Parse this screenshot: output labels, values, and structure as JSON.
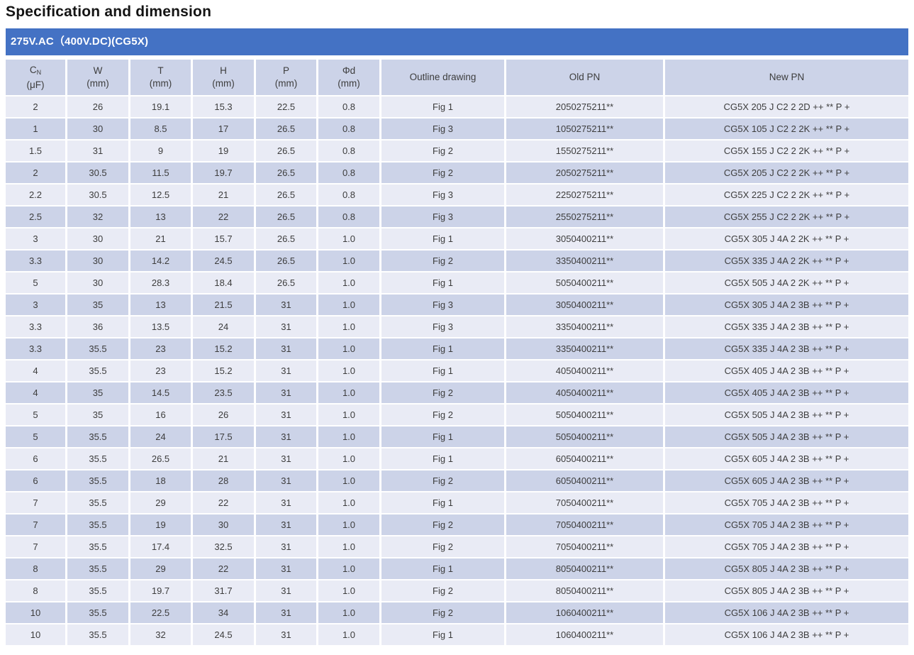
{
  "page_title": "Specification and dimension",
  "band": {
    "title": "275V.AC（400V.DC)(CG5X)"
  },
  "colors": {
    "band_bg": "#4472c4",
    "header_row_bg": "#ccd3e8",
    "row_light_bg": "#e9ebf5",
    "row_dark_bg": "#ccd3e8",
    "cell_text": "#3d3d3d"
  },
  "table": {
    "columns": [
      {
        "top": "C",
        "sub": "N",
        "bottom": "(μF)"
      },
      {
        "top": "W",
        "bottom": "(mm)"
      },
      {
        "top": "T",
        "bottom": "(mm)"
      },
      {
        "top": "H",
        "bottom": "(mm)"
      },
      {
        "top": "P",
        "bottom": "(mm)"
      },
      {
        "top": "Φd",
        "bottom": "(mm)"
      },
      {
        "top": "Outline drawing"
      },
      {
        "top": "Old PN"
      },
      {
        "top": "New PN"
      }
    ],
    "rows": [
      [
        "2",
        "26",
        "19.1",
        "15.3",
        "22.5",
        "0.8",
        "Fig 1",
        "2050275211**",
        "CG5X 205 J C2 2 2D ++ ** P +"
      ],
      [
        "1",
        "30",
        "8.5",
        "17",
        "26.5",
        "0.8",
        "Fig 3",
        "1050275211**",
        "CG5X 105 J C2 2 2K ++ ** P +"
      ],
      [
        "1.5",
        "31",
        "9",
        "19",
        "26.5",
        "0.8",
        "Fig 2",
        "1550275211**",
        "CG5X 155 J C2 2 2K ++ ** P +"
      ],
      [
        "2",
        "30.5",
        "11.5",
        "19.7",
        "26.5",
        "0.8",
        "Fig 2",
        "2050275211**",
        "CG5X 205 J C2 2 2K ++ ** P +"
      ],
      [
        "2.2",
        "30.5",
        "12.5",
        "21",
        "26.5",
        "0.8",
        "Fig 3",
        "2250275211**",
        "CG5X 225 J C2 2 2K ++ ** P +"
      ],
      [
        "2.5",
        "32",
        "13",
        "22",
        "26.5",
        "0.8",
        "Fig 3",
        "2550275211**",
        "CG5X 255 J C2 2 2K ++ ** P +"
      ],
      [
        "3",
        "30",
        "21",
        "15.7",
        "26.5",
        "1.0",
        "Fig 1",
        "3050400211**",
        "CG5X 305 J 4A 2 2K ++ ** P +"
      ],
      [
        "3.3",
        "30",
        "14.2",
        "24.5",
        "26.5",
        "1.0",
        "Fig 2",
        "3350400211**",
        "CG5X 335 J 4A 2 2K ++ ** P +"
      ],
      [
        "5",
        "30",
        "28.3",
        "18.4",
        "26.5",
        "1.0",
        "Fig 1",
        "5050400211**",
        "CG5X 505 J 4A 2 2K ++ ** P +"
      ],
      [
        "3",
        "35",
        "13",
        "21.5",
        "31",
        "1.0",
        "Fig 3",
        "3050400211**",
        "CG5X 305 J 4A 2 3B ++ ** P +"
      ],
      [
        "3.3",
        "36",
        "13.5",
        "24",
        "31",
        "1.0",
        "Fig 3",
        "3350400211**",
        "CG5X 335 J 4A 2 3B ++ ** P +"
      ],
      [
        "3.3",
        "35.5",
        "23",
        "15.2",
        "31",
        "1.0",
        "Fig 1",
        "3350400211**",
        "CG5X 335 J 4A 2 3B ++ ** P +"
      ],
      [
        "4",
        "35.5",
        "23",
        "15.2",
        "31",
        "1.0",
        "Fig 1",
        "4050400211**",
        "CG5X 405 J 4A 2 3B ++ ** P +"
      ],
      [
        "4",
        "35",
        "14.5",
        "23.5",
        "31",
        "1.0",
        "Fig 2",
        "4050400211**",
        "CG5X 405 J 4A 2 3B ++ ** P +"
      ],
      [
        "5",
        "35",
        "16",
        "26",
        "31",
        "1.0",
        "Fig 2",
        "5050400211**",
        "CG5X 505 J 4A 2 3B ++ ** P +"
      ],
      [
        "5",
        "35.5",
        "24",
        "17.5",
        "31",
        "1.0",
        "Fig 1",
        "5050400211**",
        "CG5X 505 J 4A 2 3B ++ ** P +"
      ],
      [
        "6",
        "35.5",
        "26.5",
        "21",
        "31",
        "1.0",
        "Fig 1",
        "6050400211**",
        "CG5X 605 J 4A 2 3B ++ ** P +"
      ],
      [
        "6",
        "35.5",
        "18",
        "28",
        "31",
        "1.0",
        "Fig 2",
        "6050400211**",
        "CG5X 605 J 4A 2 3B ++ ** P +"
      ],
      [
        "7",
        "35.5",
        "29",
        "22",
        "31",
        "1.0",
        "Fig 1",
        "7050400211**",
        "CG5X 705 J 4A 2 3B ++ ** P +"
      ],
      [
        "7",
        "35.5",
        "19",
        "30",
        "31",
        "1.0",
        "Fig 2",
        "7050400211**",
        "CG5X 705 J 4A 2 3B ++ ** P +"
      ],
      [
        "7",
        "35.5",
        "17.4",
        "32.5",
        "31",
        "1.0",
        "Fig 2",
        "7050400211**",
        "CG5X 705 J 4A 2 3B ++ ** P +"
      ],
      [
        "8",
        "35.5",
        "29",
        "22",
        "31",
        "1.0",
        "Fig 1",
        "8050400211**",
        "CG5X 805 J 4A 2 3B ++ ** P +"
      ],
      [
        "8",
        "35.5",
        "19.7",
        "31.7",
        "31",
        "1.0",
        "Fig 2",
        "8050400211**",
        "CG5X 805 J 4A 2 3B ++ ** P +"
      ],
      [
        "10",
        "35.5",
        "22.5",
        "34",
        "31",
        "1.0",
        "Fig 2",
        "1060400211**",
        "CG5X 106 J 4A 2 3B ++ ** P +"
      ],
      [
        "10",
        "35.5",
        "32",
        "24.5",
        "31",
        "1.0",
        "Fig 1",
        "1060400211**",
        "CG5X 106 J 4A 2 3B ++ ** P +"
      ]
    ]
  }
}
